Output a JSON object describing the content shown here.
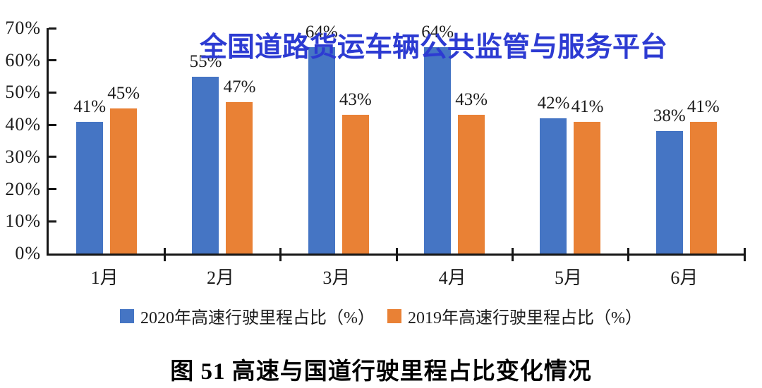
{
  "watermark": {
    "text": "全国道路货运车辆公共监管与服务平台",
    "color": "#2d3bd2"
  },
  "caption": "图 51 高速与国道行驶里程占比变化情况",
  "legend": [
    {
      "label": "2020年高速行驶里程占比（%）",
      "color": "#4575C4"
    },
    {
      "label": "2019年高速行驶里程占比（%）",
      "color": "#E98135"
    }
  ],
  "colors": {
    "series_2020": "#4575C4",
    "series_2019": "#E98135",
    "axis": "#161616",
    "text": "#1c1c1c",
    "watermark": "#2d3bd2"
  },
  "chart_data": {
    "type": "bar",
    "title": "",
    "xlabel": "",
    "ylabel": "",
    "categories": [
      "1月",
      "2月",
      "3月",
      "4月",
      "5月",
      "6月"
    ],
    "series": [
      {
        "key": "2020",
        "name": "2020年高速行驶里程占比（%）",
        "color": "#4575C4",
        "values": [
          41,
          55,
          64,
          64,
          42,
          38
        ],
        "labels": [
          "41%",
          "55%",
          "64%",
          "64%",
          "42%",
          "38%"
        ]
      },
      {
        "key": "2019",
        "name": "2019年高速行驶里程占比（%）",
        "color": "#E98135",
        "values": [
          45,
          47,
          43,
          43,
          41,
          41
        ],
        "labels": [
          "45%",
          "47%",
          "43%",
          "43%",
          "41%",
          "41%"
        ]
      }
    ],
    "y_ticks": [
      "0%",
      "10%",
      "20%",
      "30%",
      "40%",
      "50%",
      "60%",
      "70%"
    ],
    "ylim": [
      0,
      70
    ],
    "grid": false,
    "legend_position": "bottom"
  }
}
